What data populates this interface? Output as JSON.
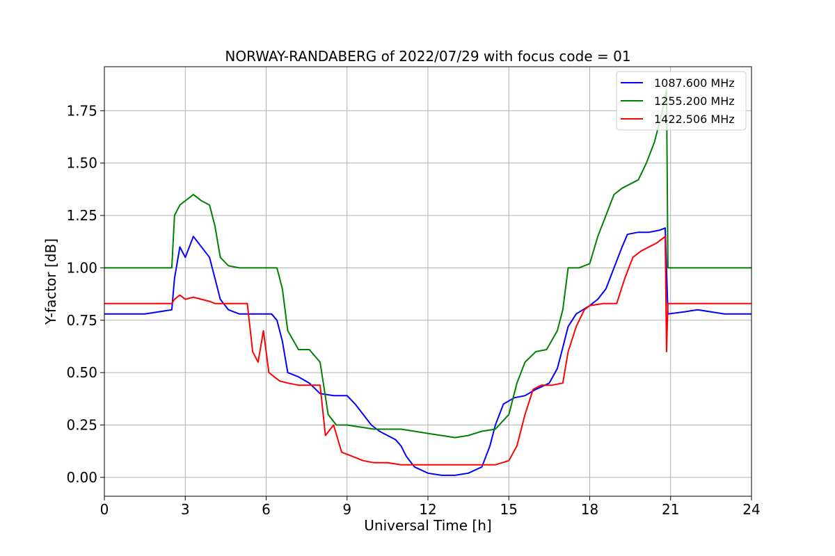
{
  "chart_data": {
    "type": "line",
    "title": "NORWAY-RANDABERG of 2022/07/29 with focus code = 01",
    "xlabel": "Universal Time [h]",
    "ylabel": "Y-factor [dB]",
    "xlim": [
      0,
      24
    ],
    "ylim": [
      -0.09,
      1.96
    ],
    "xticks": [
      0,
      3,
      6,
      9,
      12,
      15,
      18,
      21,
      24
    ],
    "xtick_labels": [
      "0",
      "3",
      "6",
      "9",
      "12",
      "15",
      "18",
      "21",
      "24"
    ],
    "yticks": [
      0,
      0.25,
      0.5,
      0.75,
      1.0,
      1.25,
      1.5,
      1.75
    ],
    "ytick_labels": [
      "0.00",
      "0.25",
      "0.50",
      "0.75",
      "1.00",
      "1.25",
      "1.50",
      "1.75"
    ],
    "grid": true,
    "legend_position": "top-right",
    "series": [
      {
        "name": "1087.600 MHz",
        "color": "#0000ff",
        "x": [
          0,
          1.5,
          2.5,
          2.6,
          2.8,
          3.0,
          3.3,
          3.6,
          3.9,
          4.1,
          4.3,
          4.6,
          5.0,
          5.4,
          5.8,
          6.2,
          6.4,
          6.6,
          6.8,
          7.2,
          7.6,
          8.0,
          8.5,
          9.0,
          9.3,
          9.6,
          9.9,
          10.2,
          10.5,
          10.8,
          11.0,
          11.2,
          11.5,
          12.0,
          12.5,
          13.0,
          13.5,
          14.0,
          14.3,
          14.5,
          14.8,
          15.2,
          15.6,
          16.0,
          16.5,
          16.8,
          17.0,
          17.2,
          17.5,
          18.0,
          18.3,
          18.6,
          18.9,
          19.2,
          19.4,
          19.8,
          20.2,
          20.6,
          20.8,
          20.9,
          21.5,
          22.0,
          22.5,
          23.0,
          24.0
        ],
        "values": [
          0.78,
          0.78,
          0.8,
          0.95,
          1.1,
          1.05,
          1.15,
          1.1,
          1.05,
          0.95,
          0.85,
          0.8,
          0.78,
          0.78,
          0.78,
          0.78,
          0.75,
          0.65,
          0.5,
          0.48,
          0.45,
          0.4,
          0.39,
          0.39,
          0.35,
          0.3,
          0.25,
          0.22,
          0.2,
          0.18,
          0.15,
          0.1,
          0.05,
          0.02,
          0.01,
          0.01,
          0.02,
          0.05,
          0.15,
          0.25,
          0.35,
          0.38,
          0.39,
          0.42,
          0.45,
          0.52,
          0.62,
          0.72,
          0.78,
          0.82,
          0.85,
          0.9,
          1.0,
          1.1,
          1.16,
          1.17,
          1.17,
          1.18,
          1.19,
          0.78,
          0.79,
          0.8,
          0.79,
          0.78,
          0.78
        ]
      },
      {
        "name": "1255.200 MHz",
        "color": "#008000",
        "x": [
          0,
          1.5,
          2.5,
          2.6,
          2.8,
          3.0,
          3.3,
          3.6,
          3.9,
          4.1,
          4.3,
          4.6,
          5.0,
          5.4,
          5.8,
          6.2,
          6.4,
          6.6,
          6.8,
          7.2,
          7.6,
          8.0,
          8.3,
          8.6,
          9.0,
          9.5,
          10.0,
          10.5,
          11.0,
          11.5,
          12.0,
          12.5,
          13.0,
          13.5,
          14.0,
          14.5,
          15.0,
          15.3,
          15.6,
          16.0,
          16.4,
          16.8,
          17.0,
          17.2,
          17.6,
          18.0,
          18.3,
          18.6,
          18.9,
          19.2,
          19.5,
          19.8,
          20.1,
          20.4,
          20.7,
          20.85,
          20.9,
          21.5,
          22.0,
          23.0,
          24.0
        ],
        "values": [
          1.0,
          1.0,
          1.0,
          1.25,
          1.3,
          1.32,
          1.35,
          1.32,
          1.3,
          1.2,
          1.05,
          1.01,
          1.0,
          1.0,
          1.0,
          1.0,
          1.0,
          0.9,
          0.7,
          0.61,
          0.61,
          0.55,
          0.3,
          0.25,
          0.25,
          0.24,
          0.23,
          0.23,
          0.23,
          0.22,
          0.21,
          0.2,
          0.19,
          0.2,
          0.22,
          0.23,
          0.3,
          0.45,
          0.55,
          0.6,
          0.61,
          0.7,
          0.8,
          1.0,
          1.0,
          1.02,
          1.15,
          1.25,
          1.35,
          1.38,
          1.4,
          1.42,
          1.5,
          1.6,
          1.75,
          1.85,
          1.0,
          1.0,
          1.0,
          1.0,
          1.0
        ]
      },
      {
        "name": "1422.506 MHz",
        "color": "#ff0000",
        "x": [
          0,
          1.5,
          2.5,
          2.6,
          2.8,
          3.0,
          3.3,
          3.6,
          3.9,
          4.1,
          4.3,
          4.6,
          5.0,
          5.3,
          5.5,
          5.7,
          5.9,
          6.1,
          6.3,
          6.5,
          6.8,
          7.2,
          7.6,
          8.0,
          8.2,
          8.5,
          8.8,
          9.2,
          9.6,
          10.0,
          10.5,
          11.0,
          11.5,
          12.0,
          12.5,
          13.0,
          13.5,
          14.0,
          14.5,
          15.0,
          15.3,
          15.6,
          15.9,
          16.2,
          16.6,
          17.0,
          17.2,
          17.5,
          17.8,
          18.0,
          18.5,
          19.0,
          19.3,
          19.6,
          19.9,
          20.2,
          20.5,
          20.8,
          20.85,
          20.9,
          21.5,
          22.0,
          22.5,
          23.0,
          24.0
        ],
        "values": [
          0.83,
          0.83,
          0.83,
          0.85,
          0.87,
          0.85,
          0.86,
          0.85,
          0.84,
          0.83,
          0.83,
          0.83,
          0.83,
          0.83,
          0.6,
          0.55,
          0.7,
          0.5,
          0.48,
          0.46,
          0.45,
          0.44,
          0.44,
          0.44,
          0.2,
          0.25,
          0.12,
          0.1,
          0.08,
          0.07,
          0.07,
          0.06,
          0.06,
          0.06,
          0.06,
          0.06,
          0.06,
          0.06,
          0.06,
          0.08,
          0.15,
          0.3,
          0.42,
          0.44,
          0.44,
          0.45,
          0.6,
          0.72,
          0.8,
          0.82,
          0.83,
          0.83,
          0.95,
          1.05,
          1.08,
          1.1,
          1.12,
          1.15,
          0.6,
          0.83,
          0.83,
          0.83,
          0.83,
          0.83,
          0.83
        ]
      }
    ]
  }
}
